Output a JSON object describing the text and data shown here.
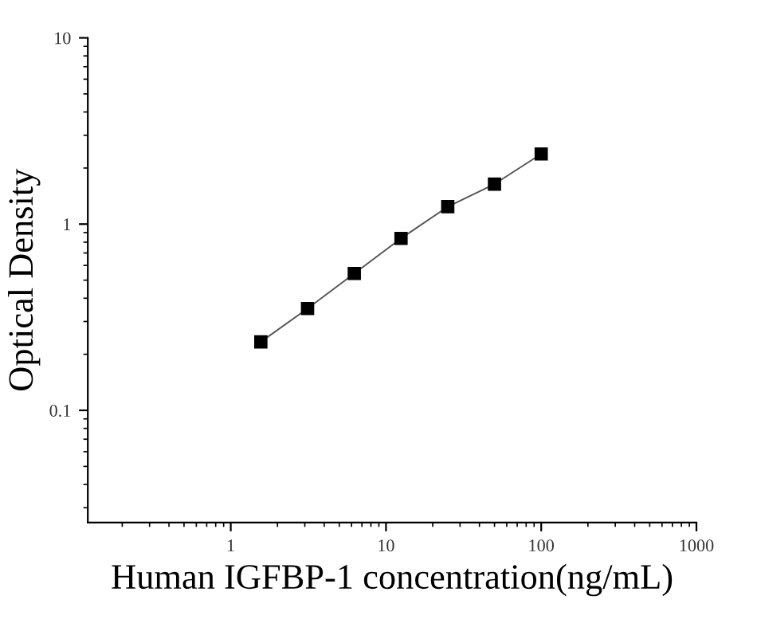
{
  "chart_data": {
    "type": "line",
    "xlabel": "Human IGFBP-1 concentration(ng/mL)",
    "ylabel": "Optical Density",
    "x": [
      1.5625,
      3.125,
      6.25,
      12.5,
      25,
      50,
      100
    ],
    "series": [
      {
        "color": "#000000",
        "values": [
          0.233,
          0.352,
          0.543,
          0.838,
          1.24,
          1.64,
          2.38
        ]
      }
    ],
    "log": "xy",
    "xlim": [
      0.12,
      1000
    ],
    "ylim": [
      0.025,
      10
    ],
    "xticks": [
      1,
      10,
      100,
      1000
    ],
    "yticks": [
      0.1,
      1,
      10
    ],
    "marker": "square",
    "line_style": "solid",
    "grid": false,
    "legend": false
  }
}
